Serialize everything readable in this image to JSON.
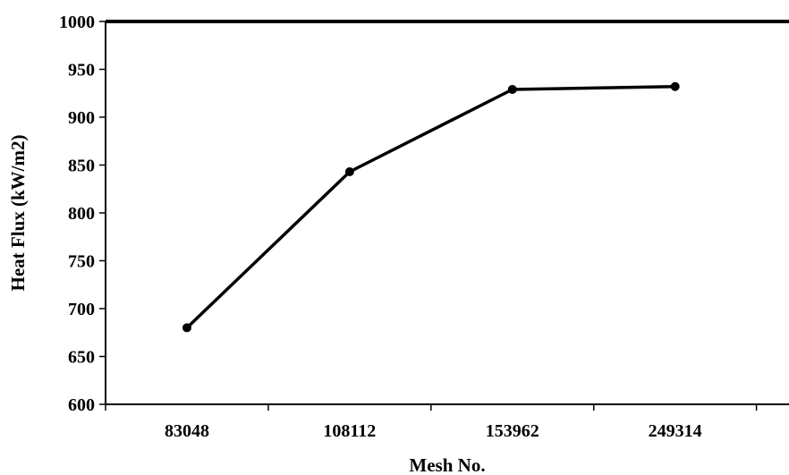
{
  "chart_data": {
    "type": "line",
    "title": "",
    "xlabel": "Mesh No.",
    "ylabel": "Heat  Flux (kW/m2)",
    "categories": [
      "83048",
      "108112",
      "153962",
      "249314"
    ],
    "series": [
      {
        "values": [
          680,
          843,
          929,
          932
        ]
      }
    ],
    "ylim": [
      600,
      1000
    ],
    "yticks": [
      600,
      650,
      700,
      750,
      800,
      850,
      900,
      950,
      1000
    ],
    "grid": false,
    "legend": "none",
    "colors": {
      "line": "#000000",
      "marker": "#000000",
      "axis": "#000000"
    }
  }
}
